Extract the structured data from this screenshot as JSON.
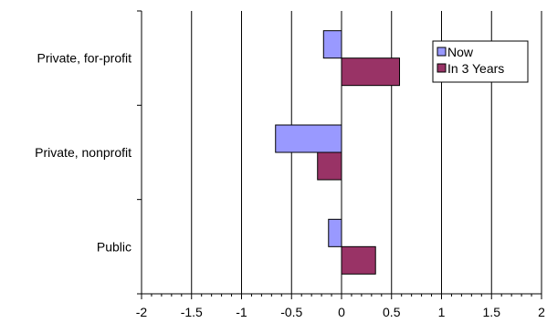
{
  "chart_data": {
    "type": "bar",
    "orientation": "horizontal",
    "categories": [
      "Private, for-profit",
      "Private, nonprofit",
      "Public"
    ],
    "series": [
      {
        "name": "Now",
        "values": [
          -0.18,
          -0.66,
          -0.13
        ],
        "color": "#9999ff"
      },
      {
        "name": "In 3 Years",
        "values": [
          0.58,
          -0.24,
          0.34
        ],
        "color": "#993366"
      }
    ],
    "xlim": [
      -2,
      2
    ],
    "xticks": [
      -2,
      -1.5,
      -1,
      -0.5,
      0,
      0.5,
      1,
      1.5,
      2
    ],
    "xtick_labels": [
      "-2",
      "-1.5",
      "-1",
      "-0.5",
      "0",
      "0.5",
      "1",
      "1.5",
      "2"
    ],
    "grid": true,
    "legend": "top-right",
    "title": "",
    "xlabel": "",
    "ylabel": ""
  }
}
